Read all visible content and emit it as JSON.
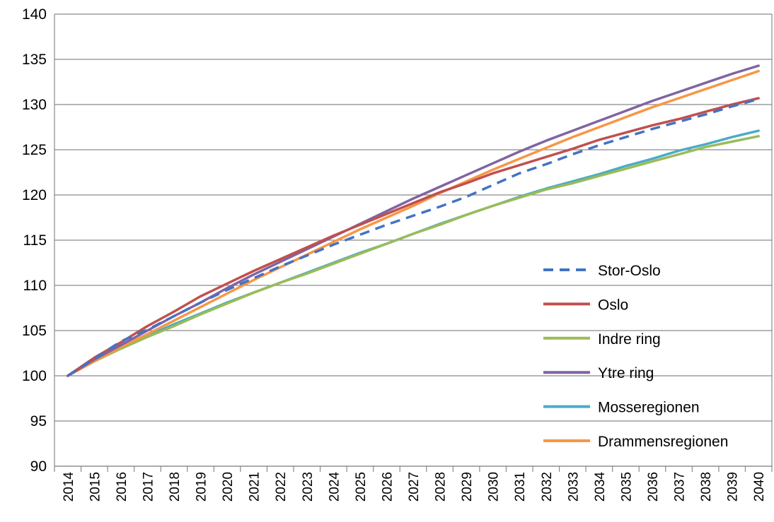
{
  "chart_data": {
    "type": "line",
    "title": "",
    "xlabel": "",
    "ylabel": "",
    "x": [
      "2014",
      "2015",
      "2016",
      "2017",
      "2018",
      "2019",
      "2020",
      "2021",
      "2022",
      "2023",
      "2024",
      "2025",
      "2026",
      "2027",
      "2028",
      "2029",
      "2030",
      "2031",
      "2032",
      "2033",
      "2034",
      "2035",
      "2036",
      "2037",
      "2038",
      "2039",
      "2040"
    ],
    "ylim": [
      90,
      140
    ],
    "yticks": [
      90,
      95,
      100,
      105,
      110,
      115,
      120,
      125,
      130,
      135,
      140
    ],
    "grid": true,
    "legend_position": "right-middle",
    "series": [
      {
        "name": "Stor-Oslo",
        "color": "#4472C4",
        "dash": true,
        "values": [
          100,
          101.9,
          103.8,
          105.1,
          106.6,
          108.1,
          109.5,
          110.8,
          112.1,
          113.3,
          114.5,
          115.6,
          116.7,
          117.7,
          118.7,
          119.8,
          121.1,
          122.4,
          123.4,
          124.5,
          125.5,
          126.4,
          127.3,
          128.1,
          128.9,
          129.8,
          130.6
        ]
      },
      {
        "name": "Oslo",
        "color": "#C0504D",
        "dash": false,
        "values": [
          100,
          102.0,
          103.7,
          105.5,
          107.1,
          108.8,
          110.2,
          111.6,
          112.9,
          114.2,
          115.5,
          116.7,
          117.9,
          119.1,
          120.3,
          121.3,
          122.4,
          123.3,
          124.2,
          125.1,
          126.1,
          126.9,
          127.7,
          128.4,
          129.2,
          130.0,
          130.7
        ]
      },
      {
        "name": "Indre ring",
        "color": "#9BBB59",
        "dash": false,
        "values": [
          100,
          101.6,
          103.0,
          104.3,
          105.5,
          106.8,
          108.0,
          109.2,
          110.3,
          111.3,
          112.4,
          113.5,
          114.6,
          115.7,
          116.7,
          117.8,
          118.8,
          119.7,
          120.6,
          121.3,
          122.1,
          122.9,
          123.7,
          124.5,
          125.3,
          125.9,
          126.5
        ]
      },
      {
        "name": "Ytre ring",
        "color": "#8064A2",
        "dash": false,
        "values": [
          100,
          101.8,
          103.4,
          105.0,
          106.6,
          108.1,
          109.7,
          111.2,
          112.6,
          114.0,
          115.4,
          116.8,
          118.2,
          119.6,
          120.9,
          122.2,
          123.5,
          124.8,
          126.0,
          127.1,
          128.2,
          129.3,
          130.4,
          131.4,
          132.4,
          133.4,
          134.3
        ]
      },
      {
        "name": "Mosseregionen",
        "color": "#4BACC6",
        "dash": false,
        "values": [
          100,
          101.6,
          103.1,
          104.4,
          105.7,
          106.9,
          108.1,
          109.2,
          110.3,
          111.4,
          112.5,
          113.6,
          114.6,
          115.7,
          116.8,
          117.8,
          118.8,
          119.8,
          120.7,
          121.5,
          122.3,
          123.2,
          124.0,
          124.9,
          125.6,
          126.4,
          127.1
        ]
      },
      {
        "name": "Drammensregionen",
        "color": "#F79646",
        "dash": false,
        "values": [
          100,
          101.6,
          103.2,
          104.6,
          106.1,
          107.6,
          109.1,
          110.6,
          112.0,
          113.4,
          114.8,
          116.2,
          117.5,
          118.8,
          120.2,
          121.5,
          122.8,
          124.0,
          125.2,
          126.4,
          127.5,
          128.6,
          129.7,
          130.7,
          131.7,
          132.7,
          133.7
        ]
      }
    ]
  }
}
